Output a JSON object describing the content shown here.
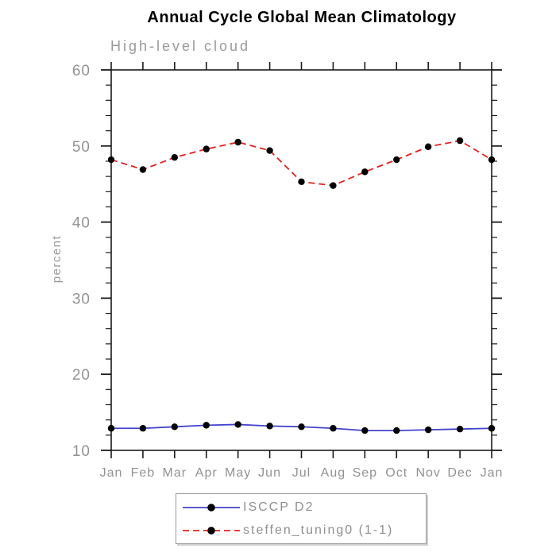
{
  "page": {
    "background_color": "#ffffff"
  },
  "chart_data": {
    "type": "line",
    "title": "Annual Cycle Global Mean Climatology",
    "subtitle": "High-level cloud",
    "xlabel": "",
    "ylabel": "percent",
    "categories": [
      "Jan",
      "Feb",
      "Mar",
      "Apr",
      "May",
      "Jun",
      "Jul",
      "Aug",
      "Sep",
      "Oct",
      "Nov",
      "Dec",
      "Jan"
    ],
    "ylim": [
      10,
      60
    ],
    "y_major_ticks": [
      10,
      20,
      30,
      40,
      50,
      60
    ],
    "y_minor_tick_step": 2,
    "grid": false,
    "legend_position": "bottom-center",
    "axis_color": "#1a1a1a",
    "tick_label_color": "#929292",
    "series": [
      {
        "name": "ISCCP D2",
        "line_style": "solid",
        "line_color": "#4343cc",
        "marker": "filled-circle",
        "marker_color": "#000000",
        "values": [
          12.9,
          12.9,
          13.1,
          13.3,
          13.4,
          13.2,
          13.1,
          12.9,
          12.6,
          12.6,
          12.7,
          12.8,
          12.9
        ]
      },
      {
        "name": "steffen_tuning0 (1-1)",
        "line_style": "dashed",
        "line_color": "#e62020",
        "marker": "filled-circle",
        "marker_color": "#000000",
        "values": [
          48.2,
          46.9,
          48.5,
          49.6,
          50.5,
          49.4,
          45.3,
          44.8,
          46.6,
          48.2,
          49.9,
          50.7,
          48.2
        ]
      }
    ]
  }
}
